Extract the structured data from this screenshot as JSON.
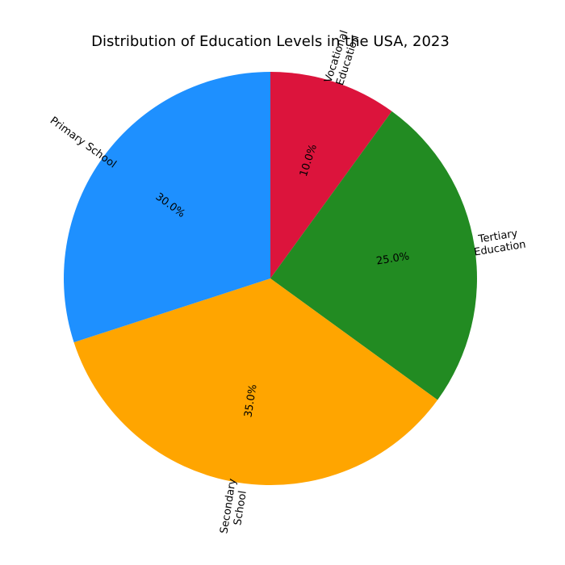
{
  "chart_data": {
    "type": "pie",
    "title": "Distribution of Education Levels in the USA, 2023",
    "slices": [
      {
        "label": "Vocational\nEducation",
        "value": 10.0,
        "pct_text": "10.0%",
        "color": "#DC143C"
      },
      {
        "label": "Tertiary\nEducation",
        "value": 25.0,
        "pct_text": "25.0%",
        "color": "#228B22"
      },
      {
        "label": "Secondary\nSchool",
        "value": 35.0,
        "pct_text": "35.0%",
        "color": "#FFA500"
      },
      {
        "label": "Primary School",
        "value": 30.0,
        "pct_text": "30.0%",
        "color": "#1E90FF"
      }
    ],
    "legend": "none"
  }
}
